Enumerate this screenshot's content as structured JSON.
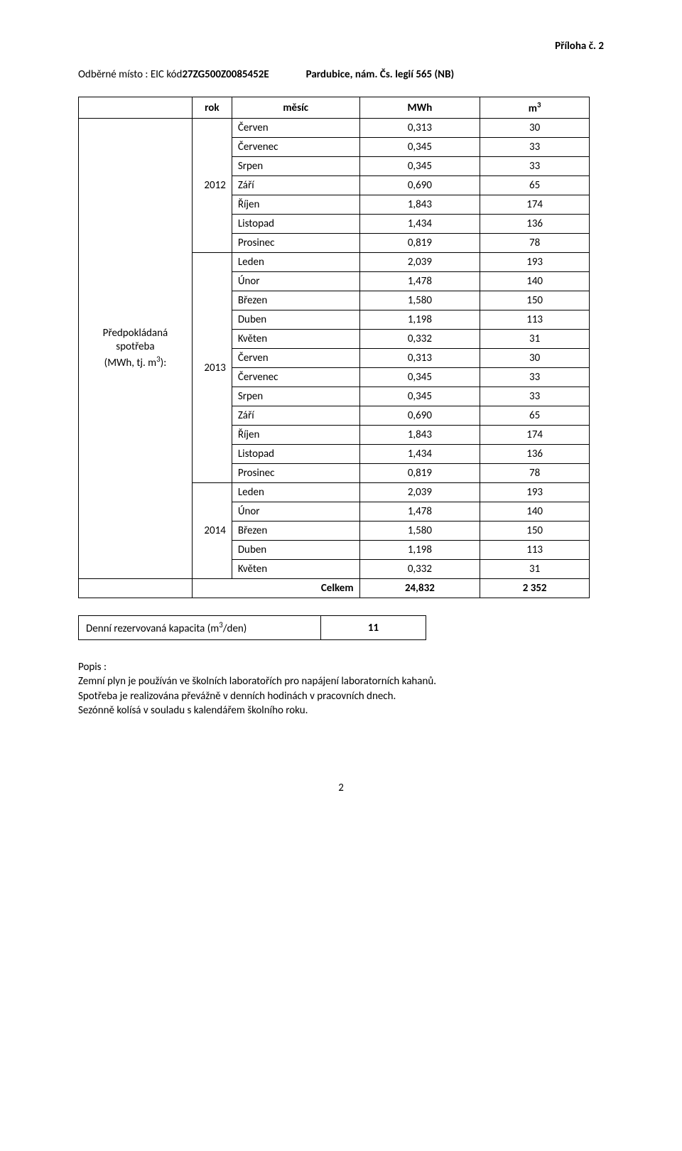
{
  "header_right": "Příloha č. 2",
  "title": {
    "prefix": "Odběrné místo : EIC kód ",
    "code": "27ZG500Z0085452E",
    "location": "Pardubice, nám. Čs. legií 565 (NB)"
  },
  "side_label_line1": "Předpokládaná",
  "side_label_line2": "spotřeba",
  "side_label_line3": "(MWh, tj. m³):",
  "table": {
    "headers": {
      "rok": "rok",
      "mesic": "měsíc",
      "mwh": "MWh",
      "m3": "m³"
    },
    "blocks": [
      {
        "year": "2012",
        "rows": [
          {
            "m": "Červen",
            "mwh": "0,313",
            "m3": "30"
          },
          {
            "m": "Červenec",
            "mwh": "0,345",
            "m3": "33"
          },
          {
            "m": "Srpen",
            "mwh": "0,345",
            "m3": "33"
          },
          {
            "m": "Září",
            "mwh": "0,690",
            "m3": "65"
          },
          {
            "m": "Říjen",
            "mwh": "1,843",
            "m3": "174"
          },
          {
            "m": "Listopad",
            "mwh": "1,434",
            "m3": "136"
          },
          {
            "m": "Prosinec",
            "mwh": "0,819",
            "m3": "78"
          }
        ]
      },
      {
        "year": "2013",
        "rows": [
          {
            "m": "Leden",
            "mwh": "2,039",
            "m3": "193"
          },
          {
            "m": "Únor",
            "mwh": "1,478",
            "m3": "140"
          },
          {
            "m": "Březen",
            "mwh": "1,580",
            "m3": "150"
          },
          {
            "m": "Duben",
            "mwh": "1,198",
            "m3": "113"
          },
          {
            "m": "Květen",
            "mwh": "0,332",
            "m3": "31"
          },
          {
            "m": "Červen",
            "mwh": "0,313",
            "m3": "30"
          },
          {
            "m": "Červenec",
            "mwh": "0,345",
            "m3": "33"
          },
          {
            "m": "Srpen",
            "mwh": "0,345",
            "m3": "33"
          },
          {
            "m": "Září",
            "mwh": "0,690",
            "m3": "65"
          },
          {
            "m": "Říjen",
            "mwh": "1,843",
            "m3": "174"
          },
          {
            "m": "Listopad",
            "mwh": "1,434",
            "m3": "136"
          },
          {
            "m": "Prosinec",
            "mwh": "0,819",
            "m3": "78"
          }
        ]
      },
      {
        "year": "2014",
        "rows": [
          {
            "m": "Leden",
            "mwh": "2,039",
            "m3": "193"
          },
          {
            "m": "Únor",
            "mwh": "1,478",
            "m3": "140"
          },
          {
            "m": "Březen",
            "mwh": "1,580",
            "m3": "150"
          },
          {
            "m": "Duben",
            "mwh": "1,198",
            "m3": "113"
          },
          {
            "m": "Květen",
            "mwh": "0,332",
            "m3": "31"
          }
        ]
      }
    ],
    "total": {
      "label": "Celkem",
      "mwh": "24,832",
      "m3": "2 352"
    }
  },
  "capacity": {
    "label": "Denní rezervovaná kapacita (m³/den)",
    "value": "11"
  },
  "popis": {
    "head": "Popis :",
    "line1": "Zemní plyn je používán ve školních laboratořích pro napájení laboratorních kahanů.",
    "line2": "Spotřeba je realizována převážně v denních hodinách v pracovních dnech.",
    "line3": "Sezónně kolísá v souladu s kalendářem školního roku."
  },
  "page_number": "2"
}
